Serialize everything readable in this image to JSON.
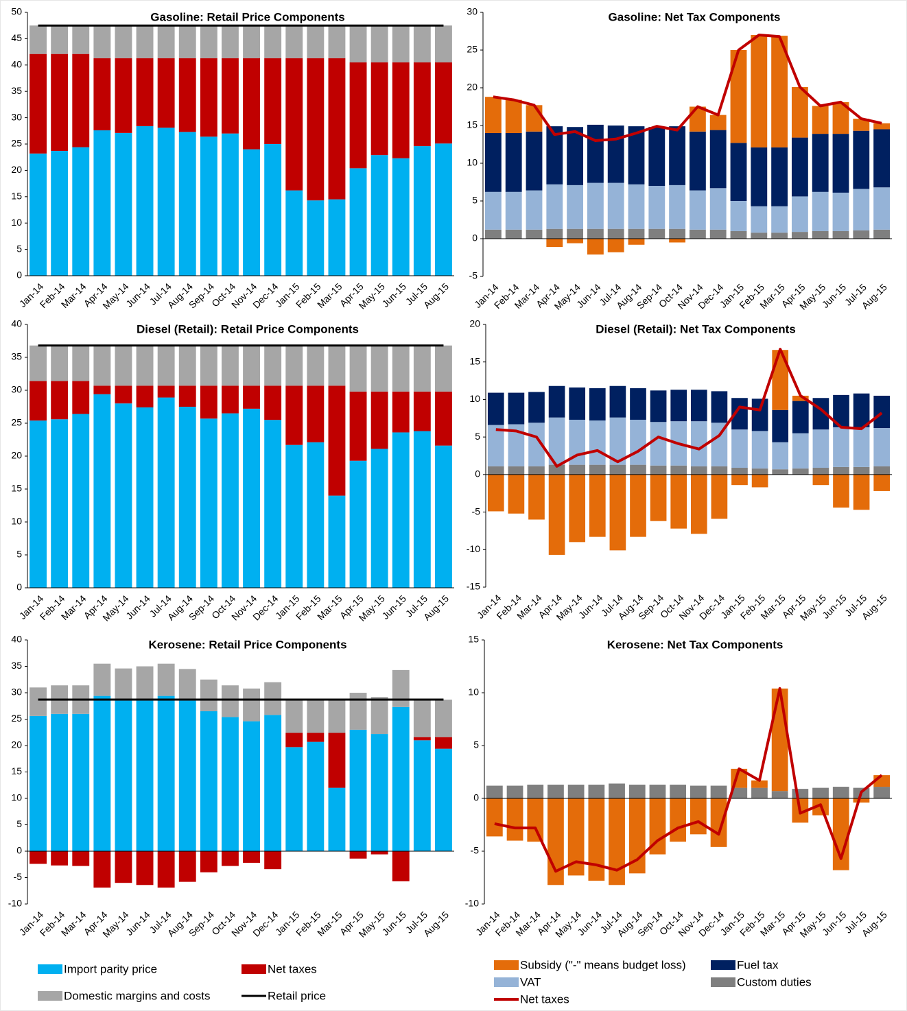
{
  "chart_data": [
    {
      "type": "bar",
      "stacked": true,
      "title": "Gasoline: Retail Price Components",
      "categories": [
        "Jan-14",
        "Feb-14",
        "Mar-14",
        "Apr-14",
        "May-14",
        "Jun-14",
        "Jul-14",
        "Aug-14",
        "Sep-14",
        "Oct-14",
        "Nov-14",
        "Dec-14",
        "Jan-15",
        "Feb-15",
        "Mar-15",
        "Apr-15",
        "May-15",
        "Jun-15",
        "Jul-15",
        "Aug-15"
      ],
      "ylim": [
        0,
        50
      ],
      "yticks": [
        0,
        5,
        10,
        15,
        20,
        25,
        30,
        35,
        40,
        45,
        50
      ],
      "series": [
        {
          "name": "Import parity price",
          "color": "#00b0f0",
          "values": [
            23.2,
            23.7,
            24.4,
            27.6,
            27.1,
            28.4,
            28.1,
            27.3,
            26.4,
            27.0,
            24.0,
            25.0,
            16.2,
            14.3,
            14.5,
            20.4,
            22.9,
            22.3,
            24.6,
            25.1
          ]
        },
        {
          "name": "Net taxes",
          "color": "#c00000",
          "values": [
            18.9,
            18.4,
            17.7,
            13.7,
            14.2,
            12.9,
            13.2,
            14.0,
            14.9,
            14.3,
            17.3,
            16.3,
            25.1,
            27.0,
            26.8,
            20.1,
            17.6,
            18.2,
            15.9,
            15.4
          ]
        },
        {
          "name": "Domestic margins and costs",
          "color": "#a6a6a6",
          "values": [
            5.4,
            5.4,
            5.4,
            6.2,
            6.2,
            6.2,
            6.2,
            6.2,
            6.2,
            6.2,
            6.2,
            6.2,
            6.2,
            6.2,
            6.2,
            7.0,
            7.0,
            7.0,
            7.0,
            7.0
          ]
        },
        {
          "name": "Retail price",
          "color": "#000000",
          "type": "line",
          "values": [
            47.5,
            47.5,
            47.5,
            47.5,
            47.5,
            47.5,
            47.5,
            47.5,
            47.5,
            47.5,
            47.5,
            47.5,
            47.5,
            47.5,
            47.5,
            47.5,
            47.5,
            47.5,
            47.5,
            47.5
          ]
        }
      ]
    },
    {
      "type": "bar",
      "stacked": true,
      "title": "Gasoline: Net Tax Components",
      "categories": [
        "Jan-14",
        "Feb-14",
        "Mar-14",
        "Apr-14",
        "May-14",
        "Jun-14",
        "Jul-14",
        "Aug-14",
        "Sep-14",
        "Oct-14",
        "Nov-14",
        "Dec-14",
        "Jan-15",
        "Feb-15",
        "Mar-15",
        "Apr-15",
        "May-15",
        "Jun-15",
        "Jul-15",
        "Aug-15"
      ],
      "ylim": [
        -5,
        30
      ],
      "yticks": [
        -5,
        0,
        5,
        10,
        15,
        20,
        25,
        30
      ],
      "series": [
        {
          "name": "Custom duties",
          "color": "#7f7f7f",
          "values": [
            1.2,
            1.2,
            1.2,
            1.3,
            1.3,
            1.3,
            1.3,
            1.3,
            1.3,
            1.3,
            1.2,
            1.2,
            1.0,
            0.8,
            0.8,
            0.9,
            1.0,
            1.0,
            1.1,
            1.2
          ]
        },
        {
          "name": "VAT",
          "color": "#95b3d7",
          "values": [
            5.0,
            5.0,
            5.2,
            5.9,
            5.8,
            6.1,
            6.1,
            5.9,
            5.7,
            5.8,
            5.2,
            5.5,
            4.0,
            3.5,
            3.5,
            4.7,
            5.2,
            5.1,
            5.5,
            5.6
          ]
        },
        {
          "name": "Fuel tax",
          "color": "#002060",
          "values": [
            7.8,
            7.8,
            7.8,
            7.7,
            7.7,
            7.7,
            7.6,
            7.7,
            7.8,
            7.8,
            7.8,
            7.7,
            7.7,
            7.8,
            7.8,
            7.8,
            7.7,
            7.8,
            7.7,
            7.7
          ]
        },
        {
          "name": "Subsidy (\"-\" means budget loss)",
          "color": "#e46c0a",
          "values": [
            4.8,
            4.4,
            3.5,
            -1.1,
            -0.6,
            -2.1,
            -1.8,
            -0.8,
            0,
            -0.5,
            3.3,
            2.0,
            12.3,
            14.9,
            14.8,
            6.7,
            3.7,
            4.2,
            1.6,
            0.8
          ]
        },
        {
          "name": "Net taxes",
          "color": "#c00000",
          "type": "line",
          "values": [
            18.8,
            18.4,
            17.7,
            13.8,
            14.2,
            13.0,
            13.2,
            14.0,
            14.9,
            14.4,
            17.5,
            16.4,
            25.0,
            27.0,
            26.8,
            20.1,
            17.6,
            18.1,
            15.9,
            15.3
          ]
        }
      ]
    },
    {
      "type": "bar",
      "stacked": true,
      "title": "Diesel (Retail): Retail Price Components",
      "categories": [
        "Jan-14",
        "Feb-14",
        "Mar-14",
        "Apr-14",
        "May-14",
        "Jun-14",
        "Jul-14",
        "Aug-14",
        "Sep-14",
        "Oct-14",
        "Nov-14",
        "Dec-14",
        "Jan-15",
        "Feb-15",
        "Mar-15",
        "Apr-15",
        "May-15",
        "Jun-15",
        "Jul-15",
        "Aug-15"
      ],
      "ylim": [
        0,
        40
      ],
      "yticks": [
        0,
        5,
        10,
        15,
        20,
        25,
        30,
        35,
        40
      ],
      "series": [
        {
          "name": "Import parity price",
          "color": "#00b0f0",
          "values": [
            25.4,
            25.6,
            26.4,
            29.4,
            28.0,
            27.4,
            28.9,
            27.5,
            25.7,
            26.5,
            27.2,
            25.5,
            21.7,
            22.1,
            14.0,
            19.3,
            21.1,
            23.6,
            23.8,
            21.6
          ]
        },
        {
          "name": "Net taxes",
          "color": "#c00000",
          "values": [
            6.0,
            5.8,
            5.0,
            1.3,
            2.7,
            3.3,
            1.8,
            3.2,
            5.0,
            4.2,
            3.5,
            5.2,
            9.0,
            8.6,
            16.7,
            10.5,
            8.7,
            6.2,
            6.0,
            8.2
          ]
        },
        {
          "name": "Domestic margins and costs",
          "color": "#a6a6a6",
          "values": [
            5.4,
            5.4,
            5.4,
            6.1,
            6.1,
            6.1,
            6.1,
            6.1,
            6.1,
            6.1,
            6.1,
            6.1,
            6.1,
            6.1,
            6.1,
            7.0,
            7.0,
            7.0,
            7.0,
            7.0
          ]
        },
        {
          "name": "Retail price",
          "color": "#000000",
          "type": "line",
          "values": [
            36.8,
            36.8,
            36.8,
            36.8,
            36.8,
            36.8,
            36.8,
            36.8,
            36.8,
            36.8,
            36.8,
            36.8,
            36.8,
            36.8,
            36.8,
            36.8,
            36.8,
            36.8,
            36.8,
            36.8
          ]
        }
      ]
    },
    {
      "type": "bar",
      "stacked": true,
      "title": "Diesel (Retail): Net Tax Components",
      "categories": [
        "Jan-14",
        "Feb-14",
        "Mar-14",
        "Apr-14",
        "May-14",
        "Jun-14",
        "Jul-14",
        "Aug-14",
        "Sep-14",
        "Oct-14",
        "Nov-14",
        "Dec-14",
        "Jan-15",
        "Feb-15",
        "Mar-15",
        "Apr-15",
        "May-15",
        "Jun-15",
        "Jul-15",
        "Aug-15"
      ],
      "ylim": [
        -15,
        20
      ],
      "yticks": [
        -15,
        -10,
        -5,
        0,
        5,
        10,
        15,
        20
      ],
      "series": [
        {
          "name": "Custom duties",
          "color": "#7f7f7f",
          "values": [
            1.1,
            1.1,
            1.1,
            1.3,
            1.3,
            1.3,
            1.3,
            1.3,
            1.2,
            1.2,
            1.1,
            1.1,
            0.9,
            0.8,
            0.7,
            0.8,
            0.9,
            1.0,
            1.0,
            1.1
          ]
        },
        {
          "name": "VAT",
          "color": "#95b3d7",
          "values": [
            5.5,
            5.6,
            5.8,
            6.3,
            6.0,
            5.9,
            6.3,
            6.0,
            5.8,
            5.9,
            6.0,
            5.8,
            5.1,
            5.0,
            3.6,
            4.7,
            5.1,
            5.3,
            5.3,
            5.1
          ]
        },
        {
          "name": "Fuel tax",
          "color": "#002060",
          "values": [
            4.3,
            4.2,
            4.1,
            4.2,
            4.3,
            4.3,
            4.2,
            4.2,
            4.2,
            4.2,
            4.2,
            4.2,
            4.2,
            4.3,
            4.3,
            4.3,
            4.2,
            4.3,
            4.5,
            4.3
          ]
        },
        {
          "name": "Subsidy (\"-\" means budget loss)",
          "color": "#e46c0a",
          "values": [
            -4.9,
            -5.2,
            -6.0,
            -10.7,
            -9.0,
            -8.3,
            -10.1,
            -8.3,
            -6.2,
            -7.2,
            -7.9,
            -5.9,
            -1.4,
            -1.7,
            8.0,
            0.7,
            -1.4,
            -4.4,
            -4.7,
            -2.2
          ]
        },
        {
          "name": "Net taxes",
          "color": "#c00000",
          "type": "line",
          "values": [
            6.0,
            5.8,
            5.0,
            1.1,
            2.6,
            3.2,
            1.7,
            3.1,
            5.0,
            4.1,
            3.4,
            5.2,
            9.0,
            8.6,
            16.7,
            10.5,
            8.7,
            6.3,
            6.1,
            8.2
          ]
        }
      ]
    },
    {
      "type": "bar",
      "stacked": true,
      "title": "Kerosene: Retail Price Components",
      "categories": [
        "Jan-14",
        "Feb-14",
        "Mar-14",
        "Apr-14",
        "May-14",
        "Jun-14",
        "Jul-14",
        "Aug-14",
        "Sep-14",
        "Oct-14",
        "Nov-14",
        "Dec-14",
        "Jan-15",
        "Feb-15",
        "Mar-15",
        "Apr-15",
        "May-15",
        "Jun-15",
        "Jul-15",
        "Aug-15"
      ],
      "ylim": [
        -10,
        40
      ],
      "yticks": [
        -10,
        -5,
        0,
        5,
        10,
        15,
        20,
        25,
        30,
        35,
        40
      ],
      "series": [
        {
          "name": "Import parity price",
          "color": "#00b0f0",
          "values": [
            25.6,
            26.0,
            26.0,
            29.4,
            28.5,
            28.5,
            29.4,
            28.5,
            26.5,
            25.4,
            24.6,
            25.8,
            19.7,
            20.7,
            12.0,
            23.0,
            22.2,
            27.3,
            21.0,
            19.4
          ]
        },
        {
          "name": "Net taxes",
          "color": "#c00000",
          "values": [
            -2.4,
            -2.7,
            -2.8,
            -6.9,
            -6.0,
            -6.4,
            -6.9,
            -5.8,
            -4.0,
            -2.8,
            -2.2,
            -3.4,
            2.7,
            1.7,
            10.4,
            -1.4,
            -0.6,
            -5.7,
            0.6,
            2.2
          ]
        },
        {
          "name": "Domestic margins and costs",
          "color": "#a6a6a6",
          "values": [
            5.4,
            5.4,
            5.4,
            6.1,
            6.1,
            6.5,
            6.1,
            6.0,
            6.0,
            6.0,
            6.2,
            6.2,
            6.3,
            6.3,
            6.3,
            7.0,
            7.0,
            7.0,
            7.1,
            7.1
          ]
        },
        {
          "name": "Retail price",
          "color": "#000000",
          "type": "line",
          "values": [
            28.7,
            28.7,
            28.7,
            28.7,
            28.7,
            28.7,
            28.7,
            28.7,
            28.7,
            28.7,
            28.7,
            28.7,
            28.7,
            28.7,
            28.7,
            28.7,
            28.7,
            28.7,
            28.7,
            28.7
          ]
        }
      ]
    },
    {
      "type": "bar",
      "stacked": true,
      "title": "Kerosene: Net Tax Components",
      "categories": [
        "Jan-14",
        "Feb-14",
        "Mar-14",
        "Apr-14",
        "May-14",
        "Jun-14",
        "Jul-14",
        "Aug-14",
        "Sep-14",
        "Oct-14",
        "Nov-14",
        "Dec-14",
        "Jan-15",
        "Feb-15",
        "Mar-15",
        "Apr-15",
        "May-15",
        "Jun-15",
        "Jul-15",
        "Aug-15"
      ],
      "ylim": [
        -10,
        15
      ],
      "yticks": [
        -10,
        -5,
        0,
        5,
        10,
        15
      ],
      "series": [
        {
          "name": "Custom duties",
          "color": "#7f7f7f",
          "values": [
            1.2,
            1.2,
            1.3,
            1.3,
            1.3,
            1.3,
            1.4,
            1.3,
            1.3,
            1.3,
            1.2,
            1.2,
            1.0,
            1.0,
            0.7,
            0.9,
            1.0,
            1.1,
            1.0,
            1.1
          ]
        },
        {
          "name": "Subsidy (\"-\" means budget loss)",
          "color": "#e46c0a",
          "values": [
            -3.6,
            -4.0,
            -4.1,
            -8.2,
            -7.3,
            -7.8,
            -8.2,
            -7.1,
            -5.3,
            -4.1,
            -3.4,
            -4.6,
            1.8,
            0.7,
            9.7,
            -2.3,
            -1.6,
            -6.8,
            -0.4,
            1.1
          ]
        },
        {
          "name": "Net taxes",
          "color": "#c00000",
          "type": "line",
          "values": [
            -2.4,
            -2.8,
            -2.8,
            -6.9,
            -6.0,
            -6.3,
            -6.8,
            -5.8,
            -4.0,
            -2.8,
            -2.2,
            -3.4,
            2.8,
            1.7,
            10.4,
            -1.4,
            -0.6,
            -5.7,
            0.6,
            2.2
          ]
        }
      ]
    }
  ]
}
